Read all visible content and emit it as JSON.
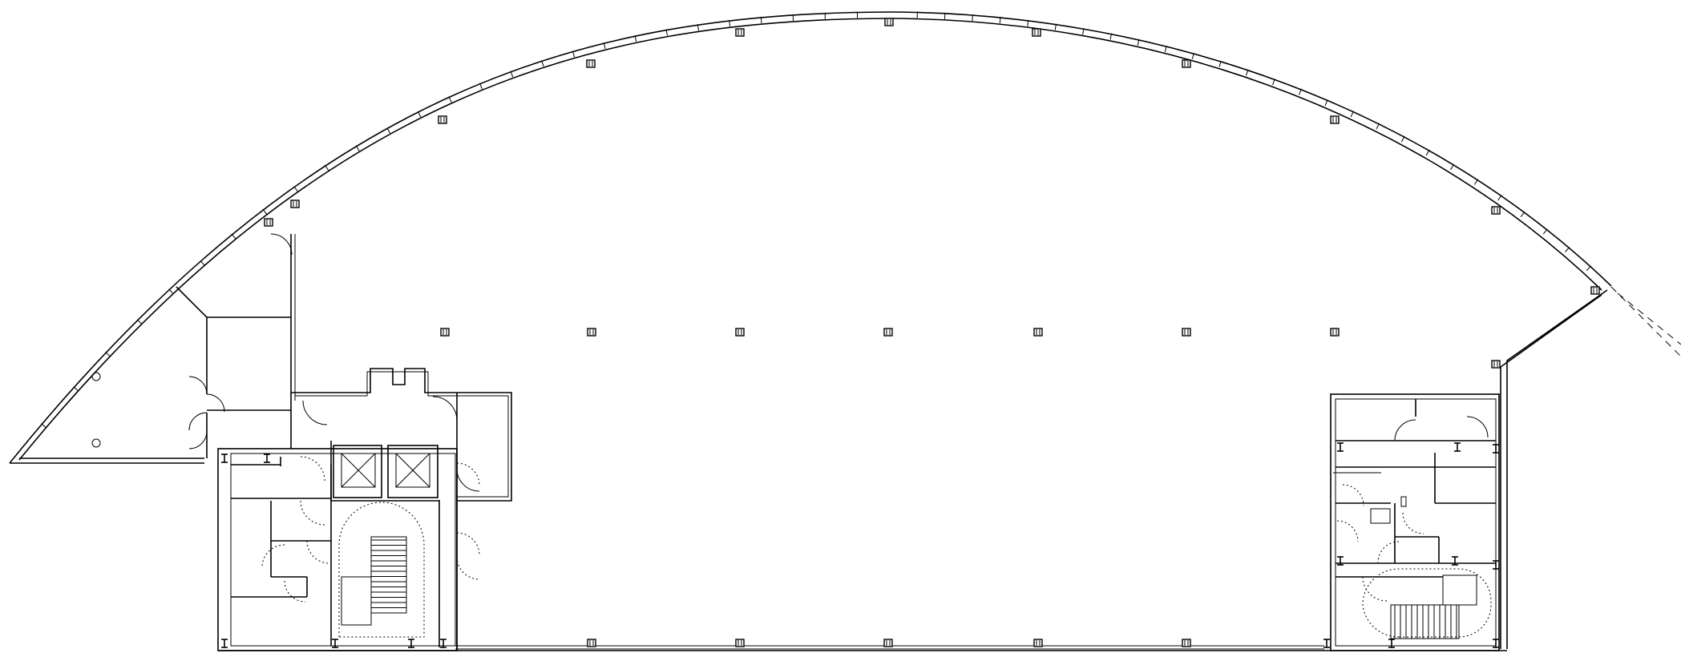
{
  "drawing": {
    "type": "architectural floor plan",
    "line_color": "#000000",
    "background": "#ffffff"
  },
  "elements": {
    "rooms": 14,
    "elevators": 2,
    "stairs": 2,
    "columns_interior_row": 7
  }
}
